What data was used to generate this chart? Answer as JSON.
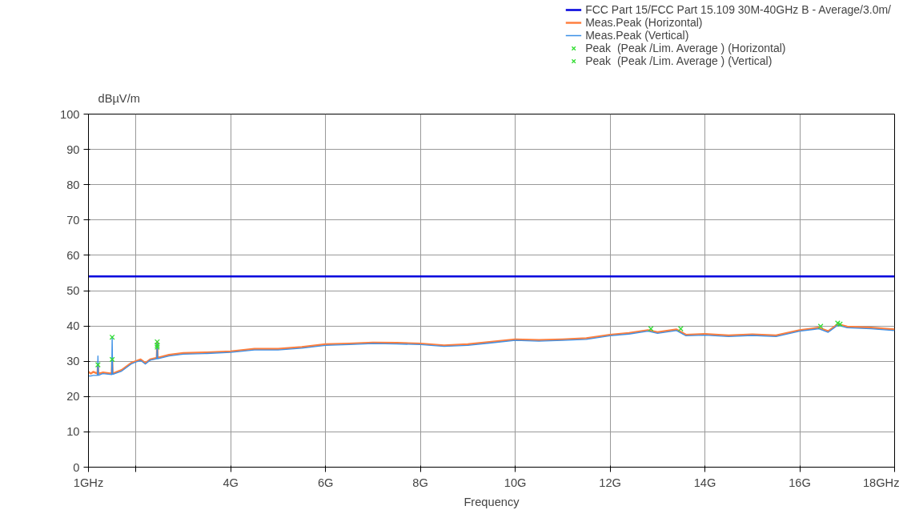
{
  "chart_data": {
    "type": "line",
    "xlabel": "Frequency",
    "ylabel": "dBµV/m",
    "xlim": [
      1,
      18
    ],
    "ylim": [
      0,
      100
    ],
    "xticks": [
      {
        "value": 1,
        "label": "1GHz"
      },
      {
        "value": 2,
        "label": null
      },
      {
        "value": 4,
        "label": "4G"
      },
      {
        "value": 6,
        "label": "6G"
      },
      {
        "value": 8,
        "label": "8G"
      },
      {
        "value": 10,
        "label": "10G"
      },
      {
        "value": 12,
        "label": "12G"
      },
      {
        "value": 14,
        "label": "14G"
      },
      {
        "value": 16,
        "label": "16G"
      },
      {
        "value": 18,
        "label": "18GHz"
      }
    ],
    "yticks": [
      0,
      10,
      20,
      30,
      40,
      50,
      60,
      70,
      80,
      90,
      100
    ],
    "grid": true,
    "legend": "top right",
    "series": [
      {
        "name": "FCC Part 15/FCC Part 15.109 30M-40GHz B - Average/3.0m/",
        "color": "#0000dd",
        "x": [
          1,
          18
        ],
        "values": [
          54,
          54
        ]
      },
      {
        "name": "Meas.Peak (Horizontal)",
        "color": "#ff7f3f",
        "x": [
          1,
          1.05,
          1.1,
          1.19,
          1.2,
          1.21,
          1.3,
          1.49,
          1.5,
          1.51,
          1.7,
          1.9,
          2.0,
          2.1,
          2.2,
          2.3,
          2.44,
          2.45,
          2.46,
          2.7,
          3.0,
          3.5,
          4.0,
          4.5,
          5.0,
          5.5,
          6.0,
          6.5,
          7.0,
          7.5,
          8.0,
          8.5,
          9.0,
          9.5,
          10.0,
          10.5,
          11.0,
          11.5,
          12.0,
          12.4,
          12.8,
          13.0,
          13.4,
          13.6,
          14.0,
          14.5,
          15.0,
          15.5,
          16.0,
          16.4,
          16.6,
          16.8,
          17.0,
          17.5,
          18.0
        ],
        "values": [
          27,
          26.5,
          27,
          26.5,
          29,
          26.5,
          26.8,
          26.5,
          30.5,
          26.5,
          27.5,
          29.5,
          30,
          30.5,
          29.5,
          30.5,
          31,
          35.5,
          31,
          31.8,
          32.3,
          32.5,
          32.8,
          33.5,
          33.5,
          34,
          34.8,
          35,
          35.3,
          35.2,
          35,
          34.5,
          34.8,
          35.5,
          36.2,
          36,
          36.2,
          36.5,
          37.5,
          38,
          38.8,
          38.2,
          39,
          37.5,
          37.7,
          37.3,
          37.6,
          37.3,
          38.8,
          39.5,
          38.5,
          40.5,
          39.8,
          39.5,
          39
        ]
      },
      {
        "name": "Meas.Peak (Vertical)",
        "color": "#3b8fe6",
        "x": [
          1,
          1.05,
          1.1,
          1.19,
          1.2,
          1.21,
          1.3,
          1.49,
          1.5,
          1.51,
          1.7,
          1.9,
          2.0,
          2.1,
          2.2,
          2.3,
          2.44,
          2.45,
          2.46,
          2.7,
          3.0,
          3.5,
          4.0,
          4.5,
          5.0,
          5.5,
          6.0,
          6.5,
          7.0,
          7.5,
          8.0,
          8.5,
          9.0,
          9.5,
          10.0,
          10.5,
          11.0,
          11.5,
          12.0,
          12.4,
          12.8,
          13.0,
          13.4,
          13.6,
          14.0,
          14.5,
          15.0,
          15.5,
          16.0,
          16.4,
          16.6,
          16.8,
          17.0,
          17.5,
          18.0
        ],
        "values": [
          25.8,
          25.8,
          26,
          26,
          31.5,
          26,
          26.5,
          26.2,
          37,
          26.3,
          27.2,
          29.2,
          29.8,
          30.2,
          29.2,
          30.3,
          30.7,
          35,
          30.7,
          31.5,
          32,
          32.2,
          32.5,
          33.2,
          33.2,
          33.7,
          34.5,
          34.7,
          35,
          34.9,
          34.7,
          34.2,
          34.5,
          35.2,
          35.9,
          35.7,
          35.9,
          36.2,
          37.2,
          37.7,
          38.5,
          37.9,
          38.7,
          37.2,
          37.4,
          37,
          37.3,
          37,
          38.5,
          39.2,
          38.2,
          40.2,
          39.5,
          39.2,
          38.7
        ]
      },
      {
        "name": "Peak  (Peak /Lim. Average ) (Horizontal)",
        "type": "scatter",
        "marker": "cross",
        "color": "#33dd33",
        "x": [
          1.2,
          1.5,
          2.45,
          12.86,
          16.44,
          16.8
        ],
        "values": [
          29,
          30.5,
          35.5,
          39.2,
          39.9,
          40.8
        ]
      },
      {
        "name": "Peak  (Peak /Lim. Average ) (Vertical)",
        "type": "scatter",
        "marker": "cross",
        "color": "#33dd33",
        "x": [
          1.5,
          2.45,
          2.45,
          13.49,
          16.85
        ],
        "values": [
          36.8,
          34.5,
          34,
          39.2,
          40.5
        ]
      }
    ]
  }
}
